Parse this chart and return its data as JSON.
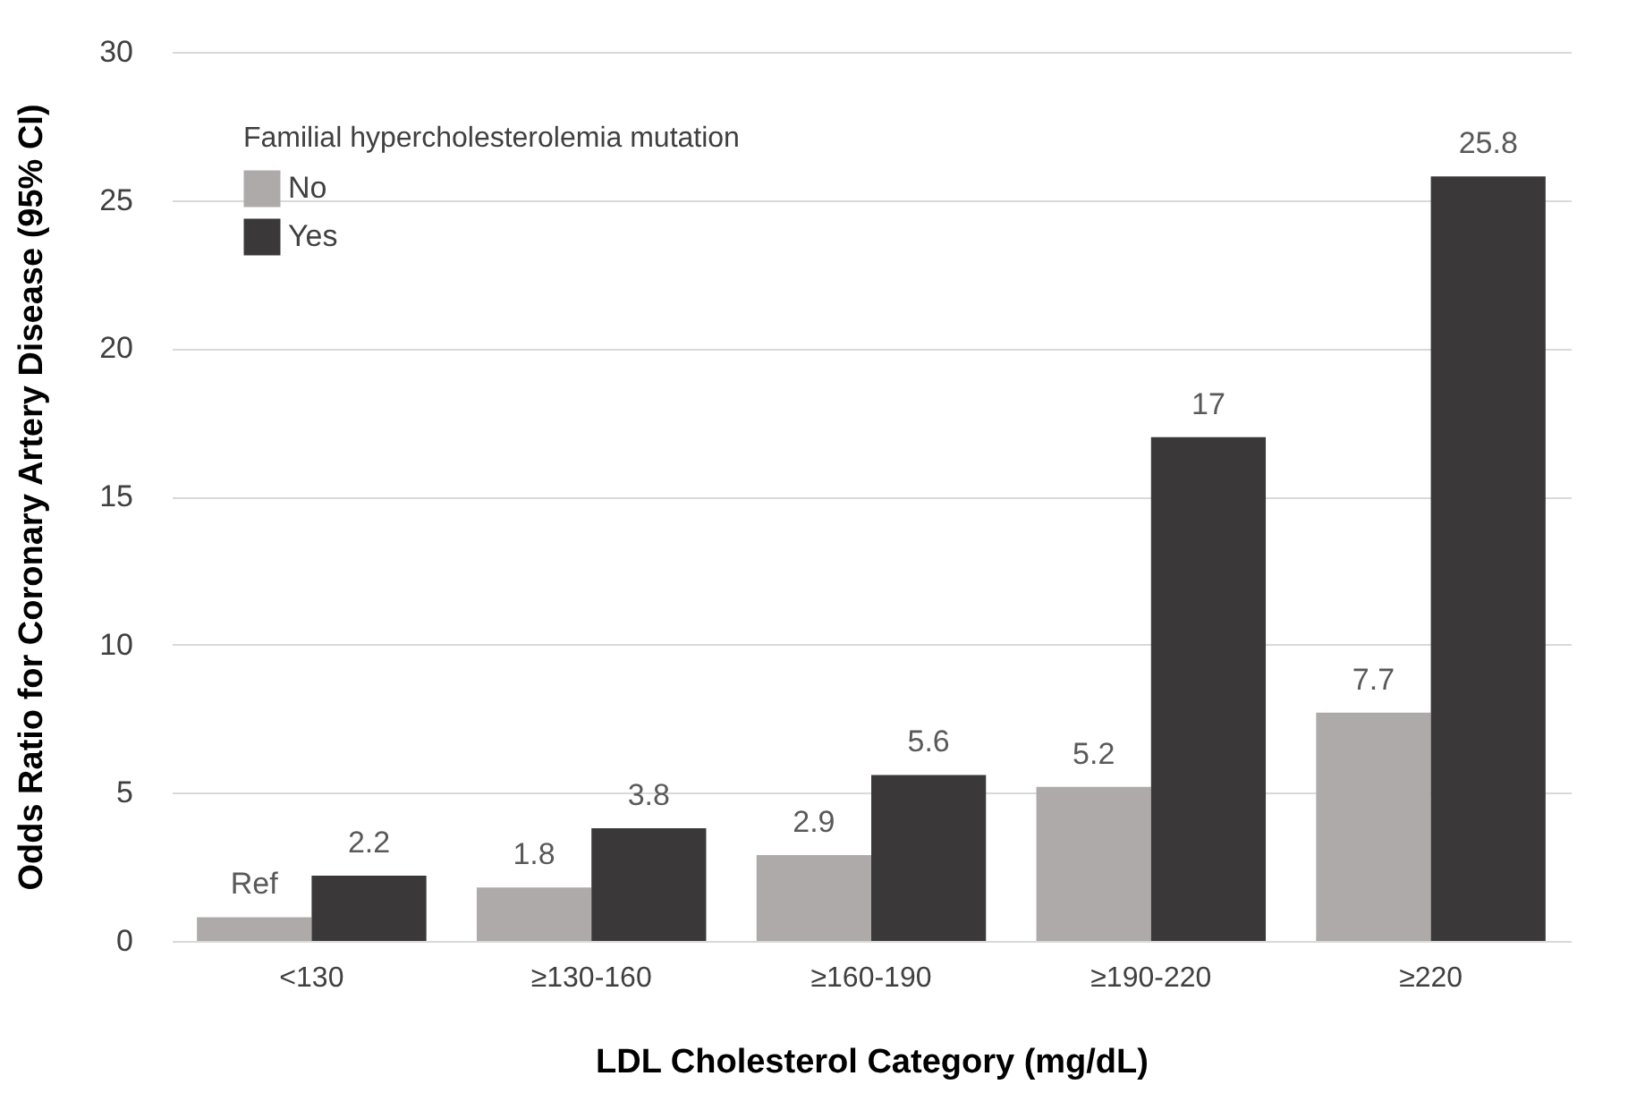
{
  "chart_data": {
    "type": "bar",
    "xlabel": "LDL Cholesterol Category (mg/dL)",
    "ylabel": "Odds Ratio for Coronary Artery Disease (95% CI)",
    "legend_title": "Familial hypercholesterolemia mutation",
    "categories": [
      "<130",
      "≥130-160",
      "≥160-190",
      "≥190-220",
      "≥220"
    ],
    "series": [
      {
        "name": "No",
        "color": "#aeaaaa",
        "values": [
          0.8,
          1.8,
          2.9,
          5.2,
          7.7
        ],
        "value_labels": [
          "Ref",
          "1.8",
          "2.9",
          "5.2",
          "7.7"
        ]
      },
      {
        "name": "Yes",
        "color": "#3a3838",
        "values": [
          2.2,
          3.8,
          5.6,
          17,
          25.8
        ],
        "value_labels": [
          "2.2",
          "3.8",
          "5.6",
          "17",
          "25.8"
        ]
      }
    ],
    "ylim": [
      0,
      30
    ],
    "yticks": [
      0,
      5,
      10,
      15,
      20,
      25,
      30
    ],
    "grid": "y",
    "legend": "top left"
  }
}
